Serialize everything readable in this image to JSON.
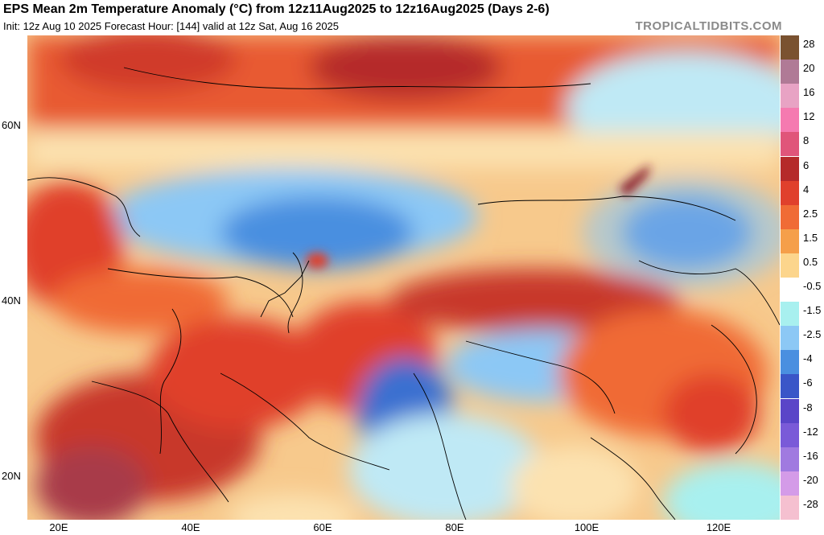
{
  "header": {
    "title": "EPS Mean 2m Temperature Anomaly (°C) from 12z11Aug2025 to 12z16Aug2025 (Days 2-6)",
    "subtitle": "Init: 12z Aug 10 2025   Forecast Hour: [144]   valid at 12z Sat, Aug 16 2025",
    "brand": "TROPICALTIDBITS.COM"
  },
  "axes": {
    "lat_labels": [
      "60N",
      "40N",
      "20N"
    ],
    "lon_labels": [
      "20E",
      "40E",
      "60E",
      "80E",
      "100E",
      "120E"
    ]
  },
  "colorbar": {
    "labels": [
      "28",
      "20",
      "16",
      "12",
      "8",
      "6",
      "4",
      "2.5",
      "1.5",
      "0.5",
      "-0.5",
      "-1.5",
      "-2.5",
      "-4",
      "-6",
      "-8",
      "-12",
      "-16",
      "-20",
      "-28"
    ],
    "colors": [
      "#7a5230",
      "#b07a96",
      "#e8a3c4",
      "#f57ab0",
      "#e0557a",
      "#b52a2a",
      "#e0402c",
      "#f06b35",
      "#f59f4a",
      "#fcd58c",
      "#ffffff",
      "#a8f0ef",
      "#8cc8f5",
      "#4a8fe0",
      "#3a56c8",
      "#5a45c8",
      "#7a5ad8",
      "#a07ae0",
      "#d49be8",
      "#f5c0d0"
    ]
  },
  "regions": [
    {
      "name": "russia-warm",
      "color": "#e0402c"
    },
    {
      "name": "siberia-strong-warm",
      "color": "#b52a2a"
    },
    {
      "name": "kazakhstan-cold",
      "color": "#4a8fe0"
    },
    {
      "name": "mongolia-cold",
      "color": "#3a6fd0"
    },
    {
      "name": "pakistan-cold",
      "color": "#3a6fd0"
    },
    {
      "name": "arabia-warm",
      "color": "#c8392b"
    },
    {
      "name": "tibet-cold",
      "color": "#8cc8f5"
    },
    {
      "name": "china-warm",
      "color": "#f06b35"
    },
    {
      "name": "ocean-cool",
      "color": "#a8f0ef"
    }
  ]
}
